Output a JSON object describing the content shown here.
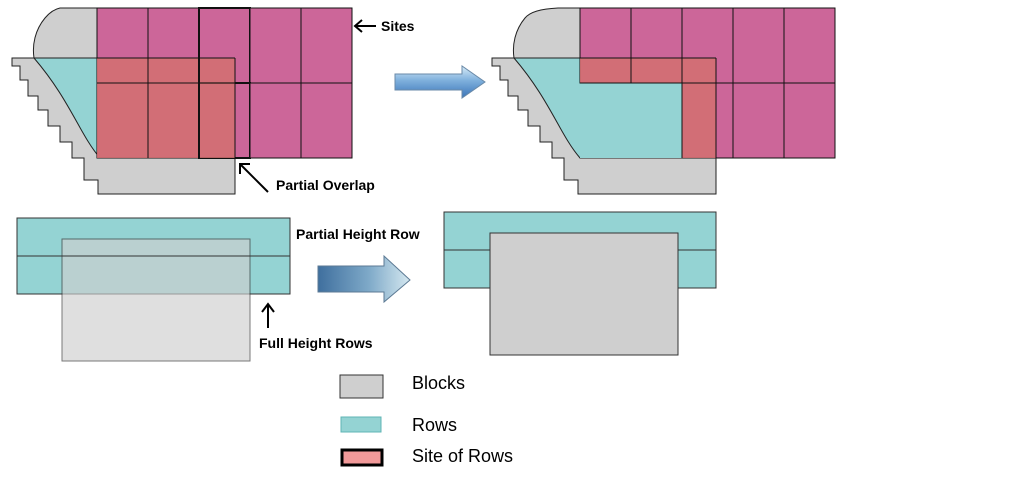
{
  "labels": {
    "sites": "Sites",
    "partial_overlap": "Partial Overlap",
    "partial_height_row": "Partial Height Row",
    "full_height_rows": "Full Height Rows"
  },
  "legend": [
    {
      "key": "blocks",
      "label": "Blocks"
    },
    {
      "key": "rows",
      "label": "Rows"
    },
    {
      "key": "site",
      "label": "Site of Rows"
    }
  ],
  "colors": {
    "block": "#cfcfcf",
    "row": "#94d3d3",
    "site": "#cc6699",
    "site_overlap": "#d27070",
    "legend_site": "#f29a9a",
    "arrow_light": "#cfe6f5",
    "arrow_dark": "#4a86c6"
  }
}
